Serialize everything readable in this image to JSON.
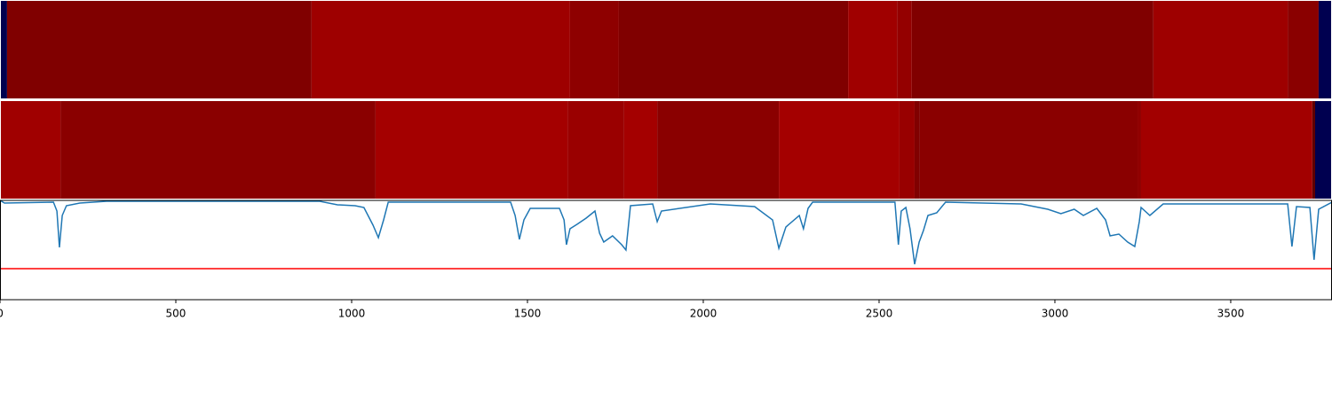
{
  "chart_data": {
    "type": "line",
    "xlim": [
      0,
      3788
    ],
    "xticks": [
      0,
      500,
      1000,
      1500,
      2000,
      2500,
      3000,
      3500
    ],
    "ylim": [
      0,
      112
    ],
    "heatmaps": [
      {
        "edges": [
          0,
          20,
          886,
          1621,
          1760,
          2412,
          2551,
          2593,
          3280,
          3662,
          3750,
          3788
        ],
        "colors": [
          "#000050",
          "#800000",
          "#9e0000",
          "#8e0000",
          "#800000",
          "#a00000",
          "#940000",
          "#800000",
          "#9e0000",
          "#8a0000",
          "#000050"
        ]
      },
      {
        "edges": [
          0,
          172,
          1068,
          1614,
          1775,
          1869,
          2215,
          2558,
          2601,
          2616,
          3235,
          3245,
          3732,
          3740,
          3788
        ],
        "colors": [
          "#a00000",
          "#8a0000",
          "#a40000",
          "#9a0000",
          "#a40000",
          "#8a0000",
          "#a40000",
          "#980000",
          "#800000",
          "#8a0000",
          "#900000",
          "#a20000",
          "#600000",
          "#000050"
        ]
      }
    ],
    "x": [
      0,
      13,
      152,
      162,
      169,
      177,
      189,
      227,
      303,
      909,
      960,
      1010,
      1035,
      1061,
      1076,
      1091,
      1104,
      1452,
      1465,
      1477,
      1490,
      1508,
      1591,
      1604,
      1611,
      1621,
      1641,
      1667,
      1692,
      1705,
      1717,
      1742,
      1768,
      1780,
      1793,
      1856,
      1869,
      1881,
      2020,
      2146,
      2197,
      2215,
      2235,
      2273,
      2285,
      2298,
      2311,
      2545,
      2555,
      2563,
      2576,
      2588,
      2601,
      2614,
      2626,
      2639,
      2664,
      2689,
      2904,
      2980,
      3017,
      3055,
      3081,
      3119,
      3144,
      3157,
      3182,
      3207,
      3227,
      3240,
      3245,
      3270,
      3308,
      3662,
      3674,
      3687,
      3725,
      3737,
      3750,
      3788
    ],
    "series": [
      {
        "color": "#1f77b4",
        "values": [
          112,
          109,
          110,
          100,
          59,
          95,
          106,
          109,
          111,
          111,
          107,
          106,
          104,
          84,
          70,
          90,
          110,
          110,
          95,
          68,
          90,
          103,
          103,
          90,
          62,
          80,
          85,
          92,
          100,
          75,
          65,
          72,
          62,
          56,
          106,
          108,
          88,
          100,
          108,
          105,
          90,
          58,
          82,
          95,
          80,
          103,
          110,
          110,
          62,
          100,
          104,
          80,
          40,
          65,
          78,
          95,
          98,
          110,
          108,
          102,
          97,
          102,
          95,
          103,
          90,
          72,
          74,
          65,
          60,
          88,
          104,
          95,
          108,
          108,
          60,
          105,
          104,
          45,
          102,
          110
        ]
      }
    ],
    "hline": {
      "value": 35,
      "color": "#ff0000"
    }
  }
}
